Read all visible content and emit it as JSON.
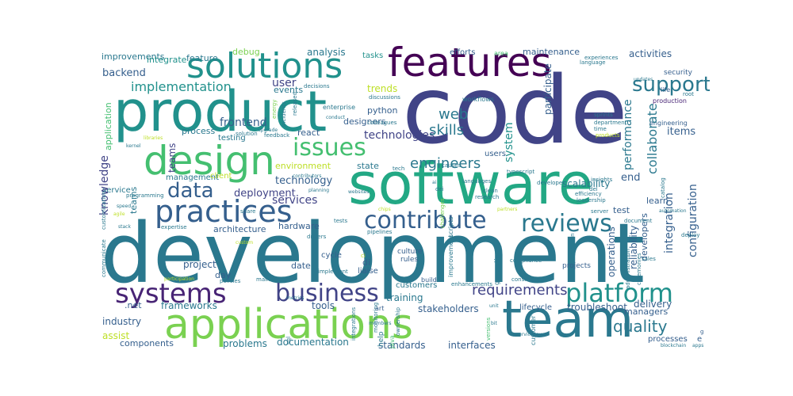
{
  "words": {
    "code": "code",
    "development": "development",
    "software": "software",
    "product": "product",
    "features": "features",
    "team": "team",
    "applications": "applications",
    "solutions": "solutions",
    "design": "design",
    "practices": "practices",
    "data": "data",
    "systems": "systems",
    "business": "business",
    "platform": "platform",
    "contribute": "contribute",
    "reviews": "reviews",
    "issues": "issues",
    "support": "support",
    "requirements": "requirements",
    "implementation": "implementation",
    "technologies": "technologies",
    "quality": "quality",
    "engineers": "engineers",
    "skills": "skills",
    "web": "web",
    "user": "user",
    "services": "services",
    "technology": "technology",
    "deployment": "deployment",
    "backend": "backend",
    "frontend": "frontend",
    "performance": "performance",
    "collaborate": "collaborate",
    "integration": "integration",
    "knowledge": "knowledge",
    "operations": "operations",
    "reliability": "reliability",
    "configuration": "configuration",
    "system": "system",
    "teams": "teams",
    "events": "events",
    "trends": "trends",
    "process": "process",
    "environment": "environment",
    "state": "state",
    "end": "end",
    "scalability": "scalability",
    "items": "items",
    "developers": "developers",
    "learn": "learn",
    "test": "test",
    "hardware": "hardware",
    "architecture": "architecture",
    "project": "project",
    "date": "date",
    "day": "day",
    "customers": "customers",
    "training": "training",
    "tools": "tools",
    "stakeholders": "stakeholders",
    "lifecycle": "lifecycle",
    "troubleshoot": "troubleshoot",
    "delivery": "delivery",
    "managers": "managers",
    "processes": "processes",
    "industry": "industry",
    "assist": "assist",
    "components": "components",
    "problems": "problems",
    "documentation": "documentation",
    "standards": "standards",
    "interfaces": "interfaces",
    "frameworks": "frameworks",
    "net": ".net",
    "help": "help",
    "improvements": "improvements",
    "integrate": "integrate",
    "feature": "feature",
    "debug": "debug",
    "analysis": "analysis",
    "tasks": "tasks",
    "efforts": "efforts",
    "area": "area",
    "maintenance": "maintenance",
    "activities": "activities",
    "security": "security",
    "python": "python",
    "designers": "designers",
    "react": "react",
    "participate": "participate",
    "testing": "testing",
    "management": "management",
    "client": "client",
    "service": "service",
    "application": "application",
    "engineering": "engineering",
    "workflows": "workflows",
    "enterprise": "enterprise",
    "colleagues": "colleagues",
    "discussions": "discussions",
    "sprints": "sprints",
    "department": "department",
    "time": "time",
    "products": "products",
    "life": "life",
    "production": "production",
    "language": "language",
    "experiences": "experiences",
    "updates": "updates",
    "root": "root",
    "users": "users",
    "tech": "tech",
    "typescript": "typescript",
    "languages": "languages",
    "causes": "causes",
    "insights": "insights",
    "developer": "developer",
    "leadership": "leadership",
    "efficiency": "efficiency",
    "del": "del",
    "server": "server",
    "document": "document",
    "deploy": "deploy",
    "sales": "sales",
    "projects": "projects",
    "compliance": "compliance",
    "consistency": "consistency",
    "enhancements": "enhancements",
    "research": "research",
    "clean": "clean",
    "dei": "dei",
    "scripts": "scripts",
    "pipelines": "pipelines",
    "culture": "culture",
    "rules": "rules",
    "build": "build",
    "tests": "tests",
    "drivers": "drivers",
    "di": "di",
    "liaise": "liaise",
    "cycle": "cycle",
    "implement": "implement",
    "conduct": "conduct",
    "incidents": "incidents",
    "released": "released",
    "decisions": "decisions",
    "upgrade": "upgrade",
    "feedback": "feedback",
    "solution": "solution",
    "libraries": "libraries",
    "kernel": "kernel",
    "speed": "speed",
    "agile": "agile",
    "programming": "programming",
    "customization": "customization",
    "communicate": "communicate",
    "stack": "stack",
    "expertise": "expertise",
    "custom": "custom",
    "participation": "participation",
    "policies": "policies",
    "maintain": "maintain",
    "metrics": "metrics",
    "members": "members",
    "art": "art",
    "ownership": "ownership",
    "unit": "unit",
    "bit": "bit",
    "servicenow": "servicenow",
    "customer": "customer",
    "blockchain": "blockchain",
    "apps": "apps",
    "java": "java",
    "sql": "sql",
    "websites": "websites",
    "planning": "planning",
    "share": "share",
    "contributors": "contributors",
    "challenges": "challenges",
    "partners": "partners",
    "monitoring": "monitoring",
    "integrations": "integrations",
    "versions": "versions",
    "generation": "generation",
    "improvement": "improvement",
    "automation": "automation",
    "administration": "administration",
    "ceremonies": "ceremonies",
    "collaboration": "collaboration",
    "catalog": "catalog",
    "energy": "energy",
    "chips": "chips",
    "e": "e",
    "g": "g",
    "ai": "ai",
    "ci": "ci"
  },
  "palette": [
    "#440154",
    "#482475",
    "#414487",
    "#355f8d",
    "#2a788e",
    "#21918c",
    "#22a884",
    "#44bf70",
    "#7ad151",
    "#bddf26",
    "#fde725"
  ]
}
